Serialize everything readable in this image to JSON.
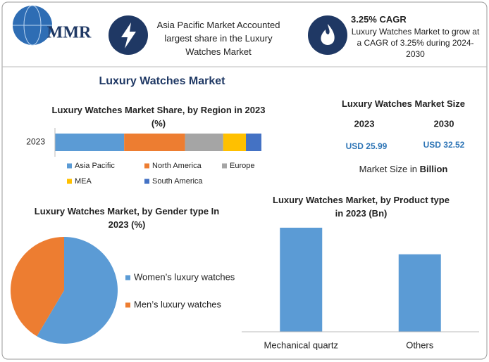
{
  "header": {
    "logo": "MMR",
    "highlight": "Asia Pacific Market Accounted largest share in the Luxury Watches Market",
    "cagr_title": "3.25% CAGR",
    "cagr_text": "Luxury Watches Market to grow at a CAGR of 3.25% during 2024-2030"
  },
  "title": "Luxury Watches Market",
  "market_size": {
    "title": "Luxury Watches Market Size",
    "years": [
      "2023",
      "2030"
    ],
    "values": [
      "USD 25.99",
      "USD 32.52"
    ],
    "note": "Market Size in",
    "unit": "Billion"
  },
  "chart_data": [
    {
      "type": "bar",
      "orientation": "horizontal",
      "stacked": true,
      "title": "Luxury Watches Market Share, by Region in 2023 (%)",
      "categories": [
        "2023"
      ],
      "xlim": [
        0,
        100
      ],
      "series": [
        {
          "name": "Asia Pacific",
          "color": "#5b9bd5",
          "values": [
            33.5
          ]
        },
        {
          "name": "North America",
          "color": "#ed7d31",
          "values": [
            29.5
          ]
        },
        {
          "name": "Europe",
          "color": "#a5a5a5",
          "values": [
            18.5
          ]
        },
        {
          "name": "MEA",
          "color": "#ffc000",
          "values": [
            11
          ]
        },
        {
          "name": "South America",
          "color": "#4472c4",
          "values": [
            7.5
          ]
        }
      ]
    },
    {
      "type": "pie",
      "title": "Luxury Watches Market, by Gender type In 2023 (%)",
      "categories": [
        "Women’s luxury watches",
        "Men’s luxury watches"
      ],
      "values": [
        58.5,
        41.5
      ],
      "colors": [
        "#5b9bd5",
        "#ed7d31"
      ]
    },
    {
      "type": "bar",
      "title": "Luxury Watches Market, by Product type in 2023 (Bn)",
      "categories": [
        "Mechanical quartz",
        "Others"
      ],
      "values": [
        14.9,
        11.09
      ],
      "color": "#5b9bd5",
      "ylim": [
        0,
        16
      ]
    }
  ]
}
